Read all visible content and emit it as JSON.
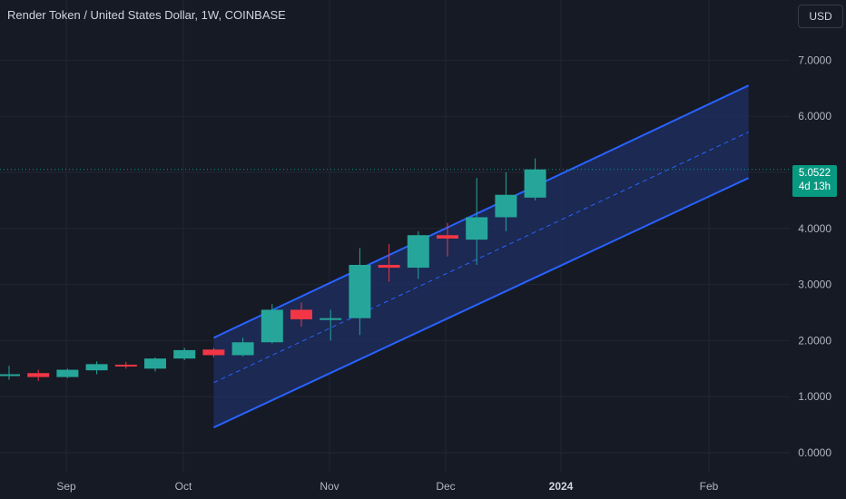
{
  "header": {
    "title": "Render Token / United States Dollar, 1W, COINBASE",
    "currency": "USD"
  },
  "last_price": {
    "value": "5.0522",
    "countdown": "4d 13h"
  },
  "colors": {
    "background": "#161a25",
    "up": "#26a69a",
    "down": "#f23645",
    "channel_line": "#2962ff",
    "channel_fill": "#1e2f63",
    "grid": "#222633",
    "text": "#b2b5be",
    "price_tag": "#089981"
  },
  "chart_data": {
    "type": "candlestick",
    "timeframe": "1W",
    "y_ticks": [
      "0.0000",
      "1.0000",
      "2.0000",
      "3.0000",
      "4.0000",
      "5.0000",
      "6.0000",
      "7.0000"
    ],
    "x_ticks": [
      "Sep",
      "Oct",
      "Nov",
      "Dec",
      "2024",
      "Feb"
    ],
    "candles": [
      {
        "o": 1.4,
        "h": 1.55,
        "l": 1.3,
        "c": 1.4
      },
      {
        "o": 1.42,
        "h": 1.48,
        "l": 1.28,
        "c": 1.35
      },
      {
        "o": 1.35,
        "h": 1.5,
        "l": 1.33,
        "c": 1.48
      },
      {
        "o": 1.47,
        "h": 1.63,
        "l": 1.4,
        "c": 1.58
      },
      {
        "o": 1.57,
        "h": 1.62,
        "l": 1.5,
        "c": 1.55
      },
      {
        "o": 1.5,
        "h": 1.7,
        "l": 1.45,
        "c": 1.68
      },
      {
        "o": 1.68,
        "h": 1.87,
        "l": 1.65,
        "c": 1.83
      },
      {
        "o": 1.84,
        "h": 1.87,
        "l": 1.7,
        "c": 1.74
      },
      {
        "o": 1.74,
        "h": 2.05,
        "l": 1.72,
        "c": 1.97
      },
      {
        "o": 1.97,
        "h": 2.65,
        "l": 1.95,
        "c": 2.55
      },
      {
        "o": 2.55,
        "h": 2.68,
        "l": 2.25,
        "c": 2.38
      },
      {
        "o": 2.38,
        "h": 2.55,
        "l": 2.0,
        "c": 2.4
      },
      {
        "o": 2.4,
        "h": 3.65,
        "l": 2.1,
        "c": 3.35
      },
      {
        "o": 3.35,
        "h": 3.72,
        "l": 3.05,
        "c": 3.3
      },
      {
        "o": 3.3,
        "h": 3.95,
        "l": 3.1,
        "c": 3.88
      },
      {
        "o": 3.88,
        "h": 4.1,
        "l": 3.5,
        "c": 3.82
      },
      {
        "o": 3.8,
        "h": 4.9,
        "l": 3.35,
        "c": 4.2
      },
      {
        "o": 4.2,
        "h": 5.0,
        "l": 3.95,
        "c": 4.6
      },
      {
        "o": 4.55,
        "h": 5.25,
        "l": 4.5,
        "c": 5.0522
      }
    ],
    "channel": {
      "start_candle": 7,
      "end_candle": 25.3,
      "upper": [
        2.05,
        6.55
      ],
      "middle": [
        1.25,
        5.72
      ],
      "lower": [
        0.45,
        4.9
      ]
    },
    "ylim": [
      0,
      7.5
    ]
  }
}
